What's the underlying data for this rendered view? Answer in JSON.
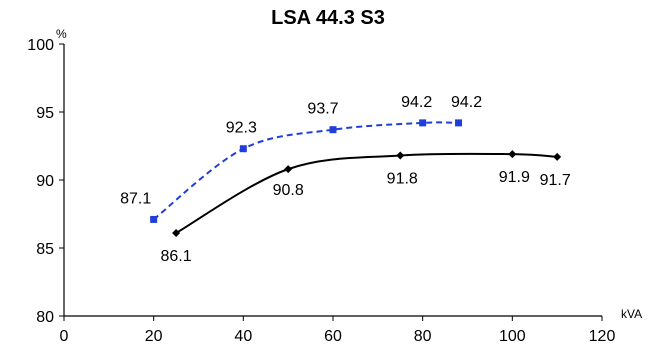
{
  "chart_data": {
    "type": "line",
    "title": "LSA 44.3 S3",
    "xlabel": "kVA",
    "ylabel": "%",
    "xlim": [
      0,
      120
    ],
    "ylim": [
      80,
      100
    ],
    "x_ticks": [
      "0",
      "20",
      "40",
      "60",
      "80",
      "100",
      "120"
    ],
    "y_ticks": [
      "80",
      "85",
      "90",
      "95",
      "100"
    ],
    "grid": false,
    "legend": "none",
    "series": [
      {
        "style": "dashed",
        "marker": "square",
        "color": "#1f3fd9",
        "x": [
          20,
          40,
          60,
          80,
          88
        ],
        "y": [
          87.1,
          92.3,
          93.7,
          94.2,
          94.2
        ],
        "labels": [
          "87.1",
          "92.3",
          "93.7",
          "94.2",
          "94.2"
        ]
      },
      {
        "style": "solid",
        "marker": "diamond",
        "color": "#000000",
        "x": [
          25,
          50,
          75,
          100,
          110
        ],
        "y": [
          86.1,
          90.8,
          91.8,
          91.9,
          91.7
        ],
        "labels": [
          "86.1",
          "90.8",
          "91.8",
          "91.9",
          "91.7"
        ]
      }
    ]
  }
}
